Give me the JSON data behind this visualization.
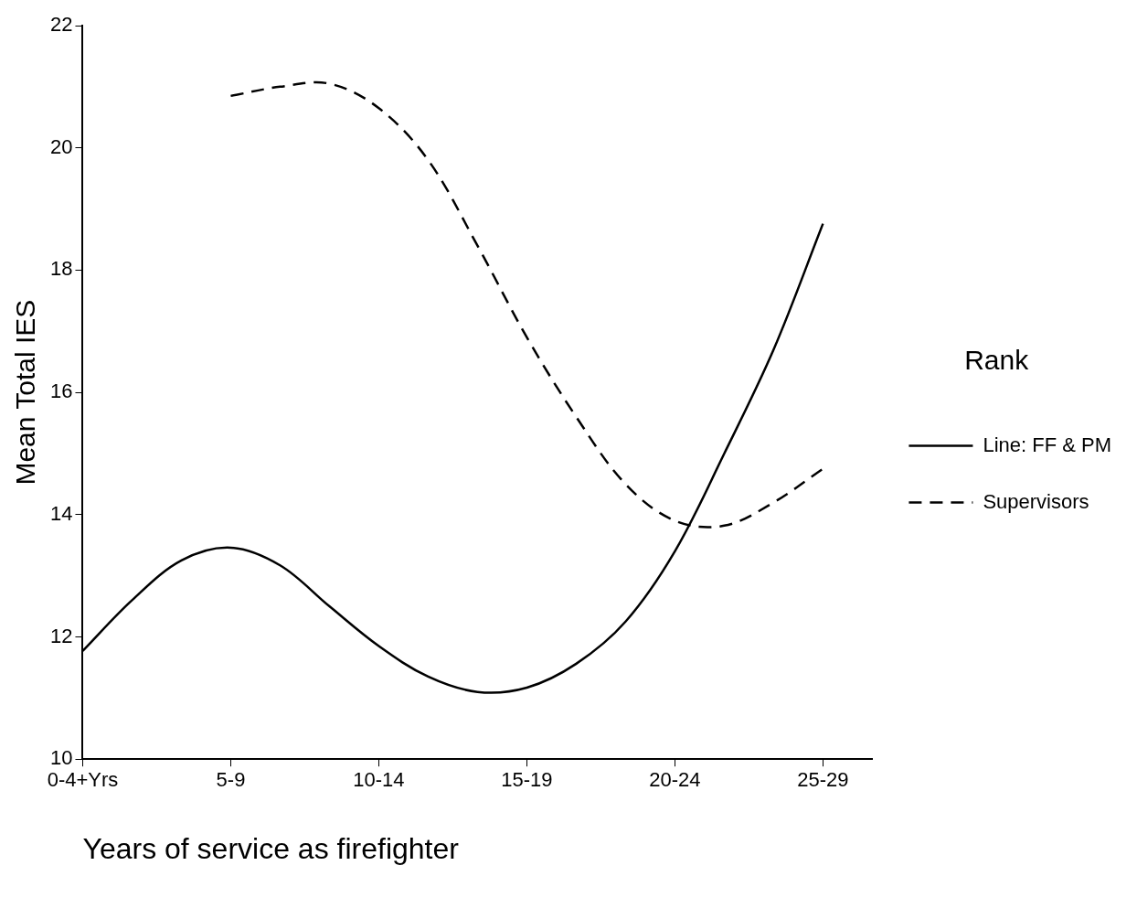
{
  "chart_data": {
    "type": "line",
    "xlabel": "Years of service as firefighter",
    "ylabel": "Mean Total IES",
    "legend_title": "Rank",
    "legend": "right",
    "grid": false,
    "marker": "none",
    "categories": [
      "0-4+Yrs",
      null,
      null,
      "5-9",
      null,
      null,
      "10-14",
      null,
      null,
      "15-19",
      null,
      null,
      "20-24",
      null,
      null,
      "25-29",
      null
    ],
    "ylim": [
      10,
      22
    ],
    "yticks": [
      10,
      12,
      14,
      16,
      18,
      20,
      22
    ],
    "series": [
      {
        "name": "Line: FF & PM",
        "color": "#000000",
        "line_style": "solid",
        "values": [
          11.77,
          12.6,
          13.25,
          13.46,
          13.17,
          12.5,
          11.85,
          11.35,
          11.1,
          11.17,
          11.56,
          12.25,
          13.4,
          15.0,
          16.7,
          18.76,
          null
        ]
      },
      {
        "name": "Supervisors",
        "color": "#000000",
        "line_style": "dashed",
        "values": [
          null,
          null,
          null,
          20.85,
          21.0,
          21.05,
          20.65,
          19.8,
          18.4,
          16.9,
          15.6,
          14.5,
          13.9,
          13.82,
          14.2,
          14.75,
          null
        ]
      }
    ]
  }
}
